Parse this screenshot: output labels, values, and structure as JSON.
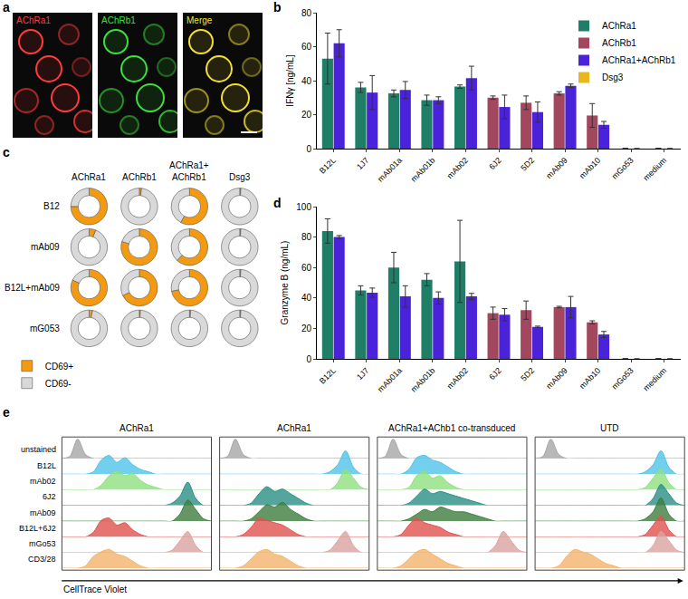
{
  "chart_data": [
    {
      "label": "a",
      "type": "image",
      "panels": [
        {
          "title": "AChRa1",
          "color": "#ff3b3b"
        },
        {
          "title": "AChRb1",
          "color": "#3be03b"
        },
        {
          "title": "Merge",
          "color": "#f2e030"
        }
      ]
    },
    {
      "label": "b",
      "type": "bar",
      "ylabel": "IFNγ [ng/mL]",
      "categories": [
        "B12L",
        "1J7",
        "mAb01a",
        "mAb01b",
        "mAb02",
        "6J2",
        "5D2",
        "mAb09",
        "mAb10",
        "mGo53",
        "medium"
      ],
      "series": [
        {
          "name": "AChRa1",
          "color": "#1e7e66",
          "values": [
            53,
            36,
            32.5,
            28.5,
            36.5,
            null,
            null,
            null,
            null,
            0,
            0
          ],
          "errors": [
            15,
            3,
            2,
            3,
            1,
            null,
            null,
            null,
            null,
            null,
            null
          ]
        },
        {
          "name": "AChRb1",
          "color": "#a3475f",
          "values": [
            null,
            null,
            null,
            null,
            null,
            30,
            27,
            32.5,
            19.5,
            0,
            0
          ],
          "errors": [
            null,
            null,
            null,
            null,
            null,
            1,
            4,
            1,
            7,
            null,
            null
          ]
        },
        {
          "name": "AChRa1+AChRb1",
          "color": "#4a22d9",
          "values": [
            62,
            33,
            34.5,
            28.5,
            41.5,
            24.5,
            21.5,
            37,
            14,
            0,
            0
          ],
          "errors": [
            8,
            10,
            5,
            2,
            7,
            7,
            6,
            1,
            2,
            null,
            null
          ]
        },
        {
          "name": "Dsg3",
          "color": "#e8b61e",
          "values": [
            0,
            0,
            0,
            0,
            0,
            0,
            0,
            0,
            0,
            0,
            0
          ]
        }
      ],
      "ylim": [
        0,
        80
      ],
      "yticks": [
        0,
        20,
        40,
        60,
        80
      ],
      "legend": "top right"
    },
    {
      "label": "c",
      "type": "donut",
      "columns": [
        "AChRa1",
        "AChRb1",
        "AChRa1+AChRb1",
        "Dsg3"
      ],
      "rows": [
        "B12",
        "mAb09",
        "B12L+mAb09",
        "mG053"
      ],
      "series": [
        {
          "name": "CD69+",
          "color": "#f39a12",
          "values": [
            [
              75,
              2,
              58,
              1
            ],
            [
              6,
              80,
              62,
              1
            ],
            [
              82,
              68,
              72,
              1
            ],
            [
              3,
              1,
              1,
              1
            ]
          ]
        },
        {
          "name": "CD69-",
          "color": "#d9d9d9",
          "values": [
            [
              25,
              98,
              42,
              99
            ],
            [
              94,
              20,
              38,
              99
            ],
            [
              18,
              32,
              28,
              99
            ],
            [
              97,
              99,
              99,
              99
            ]
          ]
        }
      ],
      "legend": "bottom left"
    },
    {
      "label": "d",
      "type": "bar",
      "ylabel": "Granzyme B (ng/mL)",
      "categories": [
        "B12L",
        "1J7",
        "mAb01a",
        "mAb01b",
        "mAb02",
        "6J2",
        "5D2",
        "mAb09",
        "mAb10",
        "mGo53",
        "medium"
      ],
      "series": [
        {
          "name": "AChRa1",
          "color": "#1e7e66",
          "values": [
            84,
            45,
            60,
            52,
            64,
            null,
            null,
            null,
            null,
            0,
            0
          ],
          "errors": [
            8,
            3,
            10,
            4,
            27,
            null,
            null,
            null,
            null,
            null,
            null
          ]
        },
        {
          "name": "AChRb1",
          "color": "#a3475f",
          "values": [
            null,
            null,
            null,
            null,
            null,
            30,
            32,
            34,
            24,
            0,
            0
          ],
          "errors": [
            null,
            null,
            null,
            null,
            null,
            4,
            6,
            0.5,
            1,
            null,
            null
          ]
        },
        {
          "name": "AChRa1+AChRb1",
          "color": "#4a22d9",
          "values": [
            80,
            43.5,
            41,
            40,
            41,
            29,
            21,
            34,
            16,
            0,
            0
          ],
          "errors": [
            1,
            3,
            7,
            4,
            2,
            4,
            0.5,
            7,
            2,
            null,
            null
          ]
        },
        {
          "name": "Dsg3",
          "color": "#e8b61e",
          "values": [
            0,
            0,
            0,
            0,
            0,
            0,
            0,
            0,
            0,
            0,
            0
          ]
        }
      ],
      "ylim": [
        0,
        100
      ],
      "yticks": [
        0,
        20,
        40,
        60,
        80,
        100
      ]
    },
    {
      "label": "e",
      "type": "ridgeline",
      "xlabel": "CellTrace Violet",
      "categories": [
        "unstained",
        "B12L",
        "mAb02",
        "6J2",
        "mAb09",
        "B12L+6J2",
        "mGo53",
        "CD3/28"
      ],
      "colors": [
        "#a6a6a6",
        "#4fc3e8",
        "#8fe07f",
        "#2a8f86",
        "#3f7d3f",
        "#e0524f",
        "#d9a3a0",
        "#f2b36b"
      ],
      "x": [
        0,
        1,
        2,
        3,
        4,
        5,
        6,
        7,
        8,
        9,
        10,
        11,
        12,
        13,
        14,
        15,
        16,
        17,
        18,
        19
      ],
      "xlim": [
        0,
        19
      ],
      "ylim": [
        0,
        10
      ],
      "tick_labels": false,
      "panels": [
        {
          "title": "AChRa1",
          "values": [
            [
              0,
              1,
              10,
              2,
              0,
              0,
              0,
              0,
              0,
              0,
              0,
              0,
              0,
              0,
              0,
              0,
              0,
              0,
              0,
              0
            ],
            [
              0,
              0,
              0,
              0,
              1,
              6,
              8,
              5,
              7,
              4,
              2,
              1,
              0,
              0,
              0,
              0,
              0,
              0,
              0,
              0
            ],
            [
              0,
              0,
              0,
              0,
              0,
              2,
              6,
              8,
              6,
              7,
              4,
              2,
              1,
              0,
              0,
              0,
              0,
              0,
              0,
              0
            ],
            [
              0,
              0,
              0,
              0,
              0,
              0,
              0,
              0,
              0,
              0,
              0,
              0,
              0,
              0,
              1,
              4,
              10,
              3,
              0,
              0
            ],
            [
              0,
              0,
              0,
              0,
              0,
              0,
              0,
              0,
              0,
              0,
              0,
              0,
              0,
              0,
              0,
              3,
              9,
              5,
              1,
              0
            ],
            [
              0,
              0,
              0,
              0,
              2,
              7,
              8,
              5,
              6,
              3,
              1,
              0,
              0,
              0,
              0,
              0,
              0,
              0,
              0,
              0
            ],
            [
              0,
              0,
              0,
              0,
              0,
              0,
              0,
              0,
              0,
              0,
              0,
              0,
              0,
              0,
              1,
              5,
              9,
              3,
              0,
              0
            ],
            [
              0,
              0,
              0,
              1,
              5,
              7,
              8,
              6,
              5,
              3,
              1,
              0,
              0,
              0,
              0,
              0,
              0,
              0,
              0,
              0
            ]
          ]
        },
        {
          "title": "AChRa1",
          "values": [
            [
              0,
              1,
              10,
              2,
              0,
              0,
              0,
              0,
              0,
              0,
              0,
              0,
              0,
              0,
              0,
              0,
              0,
              0,
              0,
              0
            ],
            [
              0,
              0,
              0,
              0,
              0,
              0,
              0,
              0,
              0,
              0,
              0,
              0,
              0,
              0,
              1,
              4,
              10,
              3,
              0,
              0
            ],
            [
              0,
              0,
              0,
              0,
              0,
              0,
              0,
              0,
              0,
              0,
              0,
              0,
              0,
              0,
              0,
              3,
              9,
              5,
              1,
              0
            ],
            [
              0,
              0,
              0,
              0,
              1,
              5,
              8,
              6,
              7,
              5,
              3,
              1,
              0,
              0,
              0,
              0,
              0,
              0,
              0,
              0
            ],
            [
              0,
              0,
              0,
              0,
              1,
              4,
              7,
              6,
              8,
              5,
              3,
              1,
              0,
              0,
              0,
              0,
              0,
              0,
              0,
              0
            ],
            [
              0,
              0,
              0,
              1,
              4,
              8,
              7,
              6,
              5,
              3,
              1,
              0,
              0,
              0,
              0,
              0,
              0,
              0,
              0,
              0
            ],
            [
              0,
              0,
              0,
              0,
              0,
              0,
              0,
              0,
              0,
              0,
              0,
              0,
              0,
              0,
              1,
              5,
              9,
              3,
              0,
              0
            ],
            [
              0,
              0,
              0,
              1,
              4,
              7,
              8,
              6,
              5,
              3,
              1,
              0,
              0,
              0,
              0,
              0,
              0,
              0,
              0,
              0
            ]
          ]
        },
        {
          "title": "AChRa1+AChb1 co-transduced",
          "values": [
            [
              0,
              1,
              10,
              2,
              0,
              0,
              0,
              0,
              0,
              0,
              0,
              0,
              0,
              0,
              0,
              0,
              0,
              0,
              0,
              0
            ],
            [
              0,
              0,
              0,
              0,
              2,
              7,
              8,
              6,
              5,
              3,
              1,
              0,
              0,
              0,
              0,
              0,
              0,
              0,
              0,
              0
            ],
            [
              0,
              0,
              0,
              0,
              1,
              6,
              8,
              5,
              6,
              3,
              1,
              0,
              0,
              0,
              0,
              0,
              0,
              0,
              0,
              0
            ],
            [
              0,
              0,
              0,
              0,
              1,
              4,
              7,
              5,
              6,
              5,
              4,
              3,
              2,
              1,
              0,
              0,
              0,
              0,
              0,
              0
            ],
            [
              0,
              0,
              0,
              0,
              1,
              3,
              5,
              4,
              6,
              5,
              4,
              4,
              3,
              2,
              1,
              0,
              0,
              0,
              0,
              0
            ],
            [
              0,
              0,
              0,
              1,
              5,
              8,
              6,
              5,
              4,
              2,
              1,
              0,
              0,
              0,
              0,
              0,
              0,
              0,
              0,
              0
            ],
            [
              0,
              0,
              0,
              0,
              0,
              0,
              0,
              0,
              0,
              0,
              0,
              0,
              0,
              0,
              0,
              3,
              9,
              5,
              1,
              0
            ],
            [
              0,
              0,
              0,
              1,
              4,
              7,
              8,
              6,
              4,
              2,
              1,
              0,
              0,
              0,
              0,
              0,
              0,
              0,
              0,
              0
            ]
          ]
        },
        {
          "title": "UTD",
          "values": [
            [
              0,
              1,
              10,
              2,
              0,
              0,
              0,
              0,
              0,
              0,
              0,
              0,
              0,
              0,
              0,
              0,
              0,
              0,
              0,
              0
            ],
            [
              0,
              0,
              0,
              0,
              0,
              0,
              0,
              0,
              0,
              0,
              0,
              0,
              0,
              0,
              1,
              4,
              10,
              3,
              0,
              0
            ],
            [
              0,
              0,
              0,
              0,
              0,
              0,
              0,
              0,
              0,
              0,
              0,
              0,
              0,
              0,
              1,
              5,
              9,
              3,
              0,
              0
            ],
            [
              0,
              0,
              0,
              0,
              0,
              0,
              0,
              0,
              0,
              0,
              0,
              0,
              0,
              0,
              0,
              3,
              9,
              5,
              1,
              0
            ],
            [
              0,
              0,
              0,
              0,
              0,
              0,
              0,
              0,
              0,
              0,
              0,
              0,
              0,
              0,
              1,
              4,
              10,
              3,
              0,
              0
            ],
            [
              0,
              0,
              0,
              0,
              0,
              0,
              0,
              0,
              0,
              0,
              0,
              0,
              0,
              0,
              1,
              5,
              9,
              3,
              0,
              0
            ],
            [
              0,
              0,
              0,
              0,
              0,
              0,
              0,
              0,
              0,
              0,
              0,
              0,
              0,
              0,
              0,
              3,
              9,
              5,
              1,
              0
            ],
            [
              0,
              0,
              0,
              1,
              5,
              8,
              7,
              6,
              4,
              2,
              1,
              0,
              0,
              0,
              0,
              0,
              0,
              0,
              0,
              0
            ]
          ]
        }
      ]
    }
  ]
}
